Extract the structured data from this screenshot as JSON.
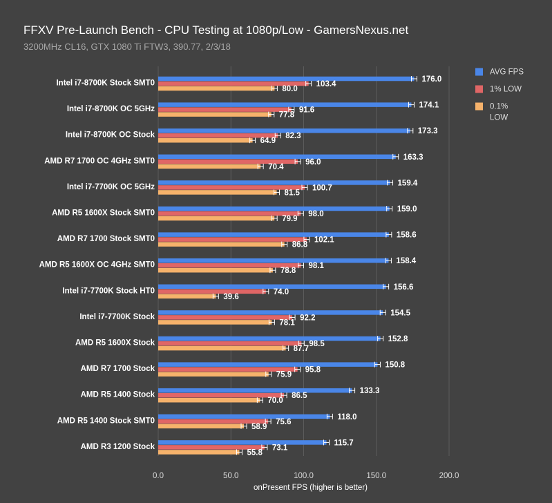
{
  "title": "FFXV Pre-Launch Bench - CPU Testing at 1080p/Low - GamersNexus.net",
  "subtitle": "3200MHz CL16, GTX 1080 Ti FTW3, 390.77, 2/3/18",
  "chart_data": {
    "type": "bar",
    "orientation": "horizontal",
    "title": "FFXV Pre-Launch Bench - CPU Testing at 1080p/Low - GamersNexus.net",
    "subtitle": "3200MHz CL16, GTX 1080 Ti FTW3, 390.77, 2/3/18",
    "xlabel": "onPresent FPS (higher is better)",
    "ylabel": "",
    "xlim": [
      0,
      200
    ],
    "xticks": [
      "0.0",
      "50.0",
      "100.0",
      "150.0",
      "200.0"
    ],
    "grid": "vertical",
    "legend": "top-right",
    "categories": [
      "Intel i7-8700K Stock SMT0",
      "Intel i7-8700K OC 5GHz",
      "Intel i7-8700K OC Stock",
      "AMD R7 1700 OC 4GHz SMT0",
      "Intel i7-7700K OC 5GHz",
      "AMD R5 1600X Stock SMT0",
      "AMD R7 1700 Stock SMT0",
      "AMD R5 1600X OC 4GHz SMT0",
      "Intel i7-7700K Stock HT0",
      "Intel i7-7700K Stock",
      "AMD R5 1600X Stock",
      "AMD R7 1700 Stock",
      "AMD R5 1400 Stock",
      "AMD R5 1400 Stock SMT0",
      "AMD R3 1200 Stock"
    ],
    "series": [
      {
        "name": "AVG FPS",
        "color": "#4a86e8",
        "values": [
          176.0,
          174.1,
          173.3,
          163.3,
          159.4,
          159.0,
          158.6,
          158.4,
          156.6,
          154.5,
          152.8,
          150.8,
          133.3,
          118.0,
          115.7
        ],
        "labels": [
          "176.0",
          "174.1",
          "173.3",
          "163.3",
          "159.4",
          "159.0",
          "158.6",
          "158.4",
          "156.6",
          "154.5",
          "152.8",
          "150.8",
          "133.3",
          "118.0",
          "115.7"
        ]
      },
      {
        "name": "1% LOW",
        "color": "#e06666",
        "values": [
          103.4,
          91.6,
          82.3,
          96.0,
          100.7,
          98.0,
          102.1,
          98.1,
          74.0,
          92.2,
          98.5,
          95.8,
          86.5,
          75.6,
          73.1
        ],
        "labels": [
          "103.4",
          "91.6",
          "82.3",
          "96.0",
          "100.7",
          "98.0",
          "102.1",
          "98.1",
          "74.0",
          "92.2",
          "98.5",
          "95.8",
          "86.5",
          "75.6",
          "73.1"
        ]
      },
      {
        "name": "0.1% LOW",
        "legend_lines": [
          "0.1%",
          "LOW"
        ],
        "color": "#f6b26b",
        "values": [
          80.0,
          77.8,
          64.9,
          70.4,
          81.5,
          79.9,
          86.8,
          78.8,
          39.6,
          78.1,
          87.7,
          75.9,
          70.0,
          58.9,
          55.8
        ],
        "labels": [
          "80.0",
          "77.8",
          "64.9",
          "70.4",
          "81.5",
          "79.9",
          "86.8",
          "78.8",
          "39.6",
          "78.1",
          "87.7",
          "75.9",
          "70.0",
          "58.9",
          "55.8"
        ]
      }
    ]
  }
}
